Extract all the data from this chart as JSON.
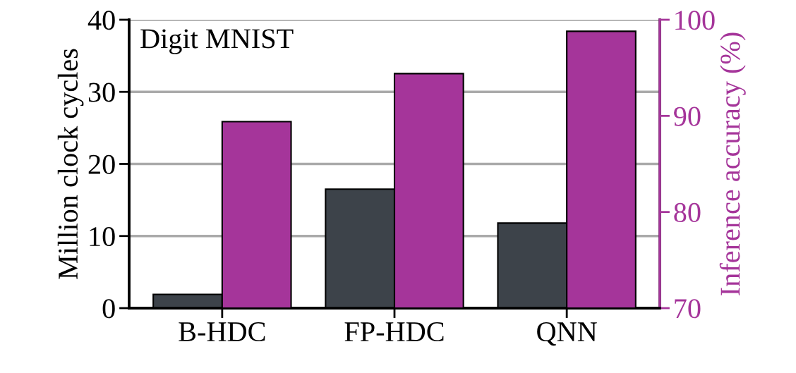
{
  "chart_data": {
    "type": "bar",
    "categories": [
      "B-HDC",
      "FP-HDC",
      "QNN"
    ],
    "series": [
      {
        "color": "#3d434a",
        "values": [
          1.9,
          16.5,
          11.8
        ]
      },
      {
        "color": "#a5359a",
        "values": [
          89.4,
          94.4,
          98.8
        ],
        "axis": "y2"
      }
    ],
    "ylabel": "Million clock cycles",
    "y2label": "Inference accuracy (%)",
    "ylim": [
      0,
      40
    ],
    "yticks": [
      0,
      10,
      20,
      30,
      40
    ],
    "y2lim": [
      70,
      100
    ],
    "y2ticks": [
      70,
      80,
      90,
      100
    ],
    "grid": "y",
    "legend": false,
    "annotations": [
      "Digit MNIST"
    ]
  }
}
